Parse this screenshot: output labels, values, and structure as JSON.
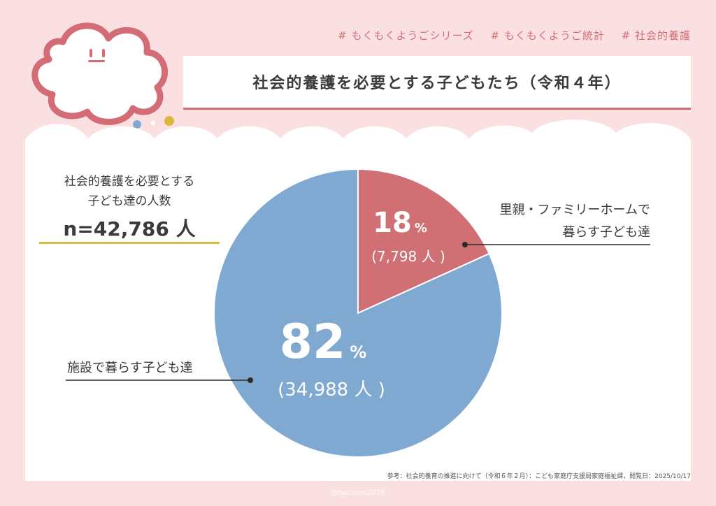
{
  "header": {
    "tags": [
      "# もくもくようごシリーズ",
      "# もくもくようご統計",
      "# 社会的養護"
    ],
    "title": "社会的養護を必要とする子どもたち（令和４年）"
  },
  "total": {
    "label_line1": "社会的養護を必要とする",
    "label_line2": "子ども達の人数",
    "value": "n=42,786 人"
  },
  "chart_data": {
    "type": "pie",
    "title": "",
    "total": 42786,
    "slices": [
      {
        "name": "里親・ファミリーホームで暮らす子ども達",
        "label_line1": "里親・ファミリーホームで",
        "label_line2": "暮らす子ども達",
        "percent_text": "18",
        "count_text": "(7,798 人 )",
        "value": 7798,
        "color": "#d07075"
      },
      {
        "name": "施設で暮らす子ども達",
        "label_line1": "施設で暮らす子ども達",
        "label_line2": "",
        "percent_text": "82",
        "count_text": "(34,988 人 )",
        "value": 34988,
        "color": "#7fa9d1"
      }
    ],
    "percent_sign": "%"
  },
  "footer": {
    "source": "参考：社会的養育の推進に向けて（令和６年２月）：こども家庭庁支援局家庭福祉課，閲覧日：2025/10/17",
    "watermark": "@tasukeai2025"
  },
  "colors": {
    "background": "#fbe0e2",
    "accent": "#d36c74",
    "underline": "#d8b83a",
    "blue": "#7fa9d1",
    "red": "#d07075"
  }
}
